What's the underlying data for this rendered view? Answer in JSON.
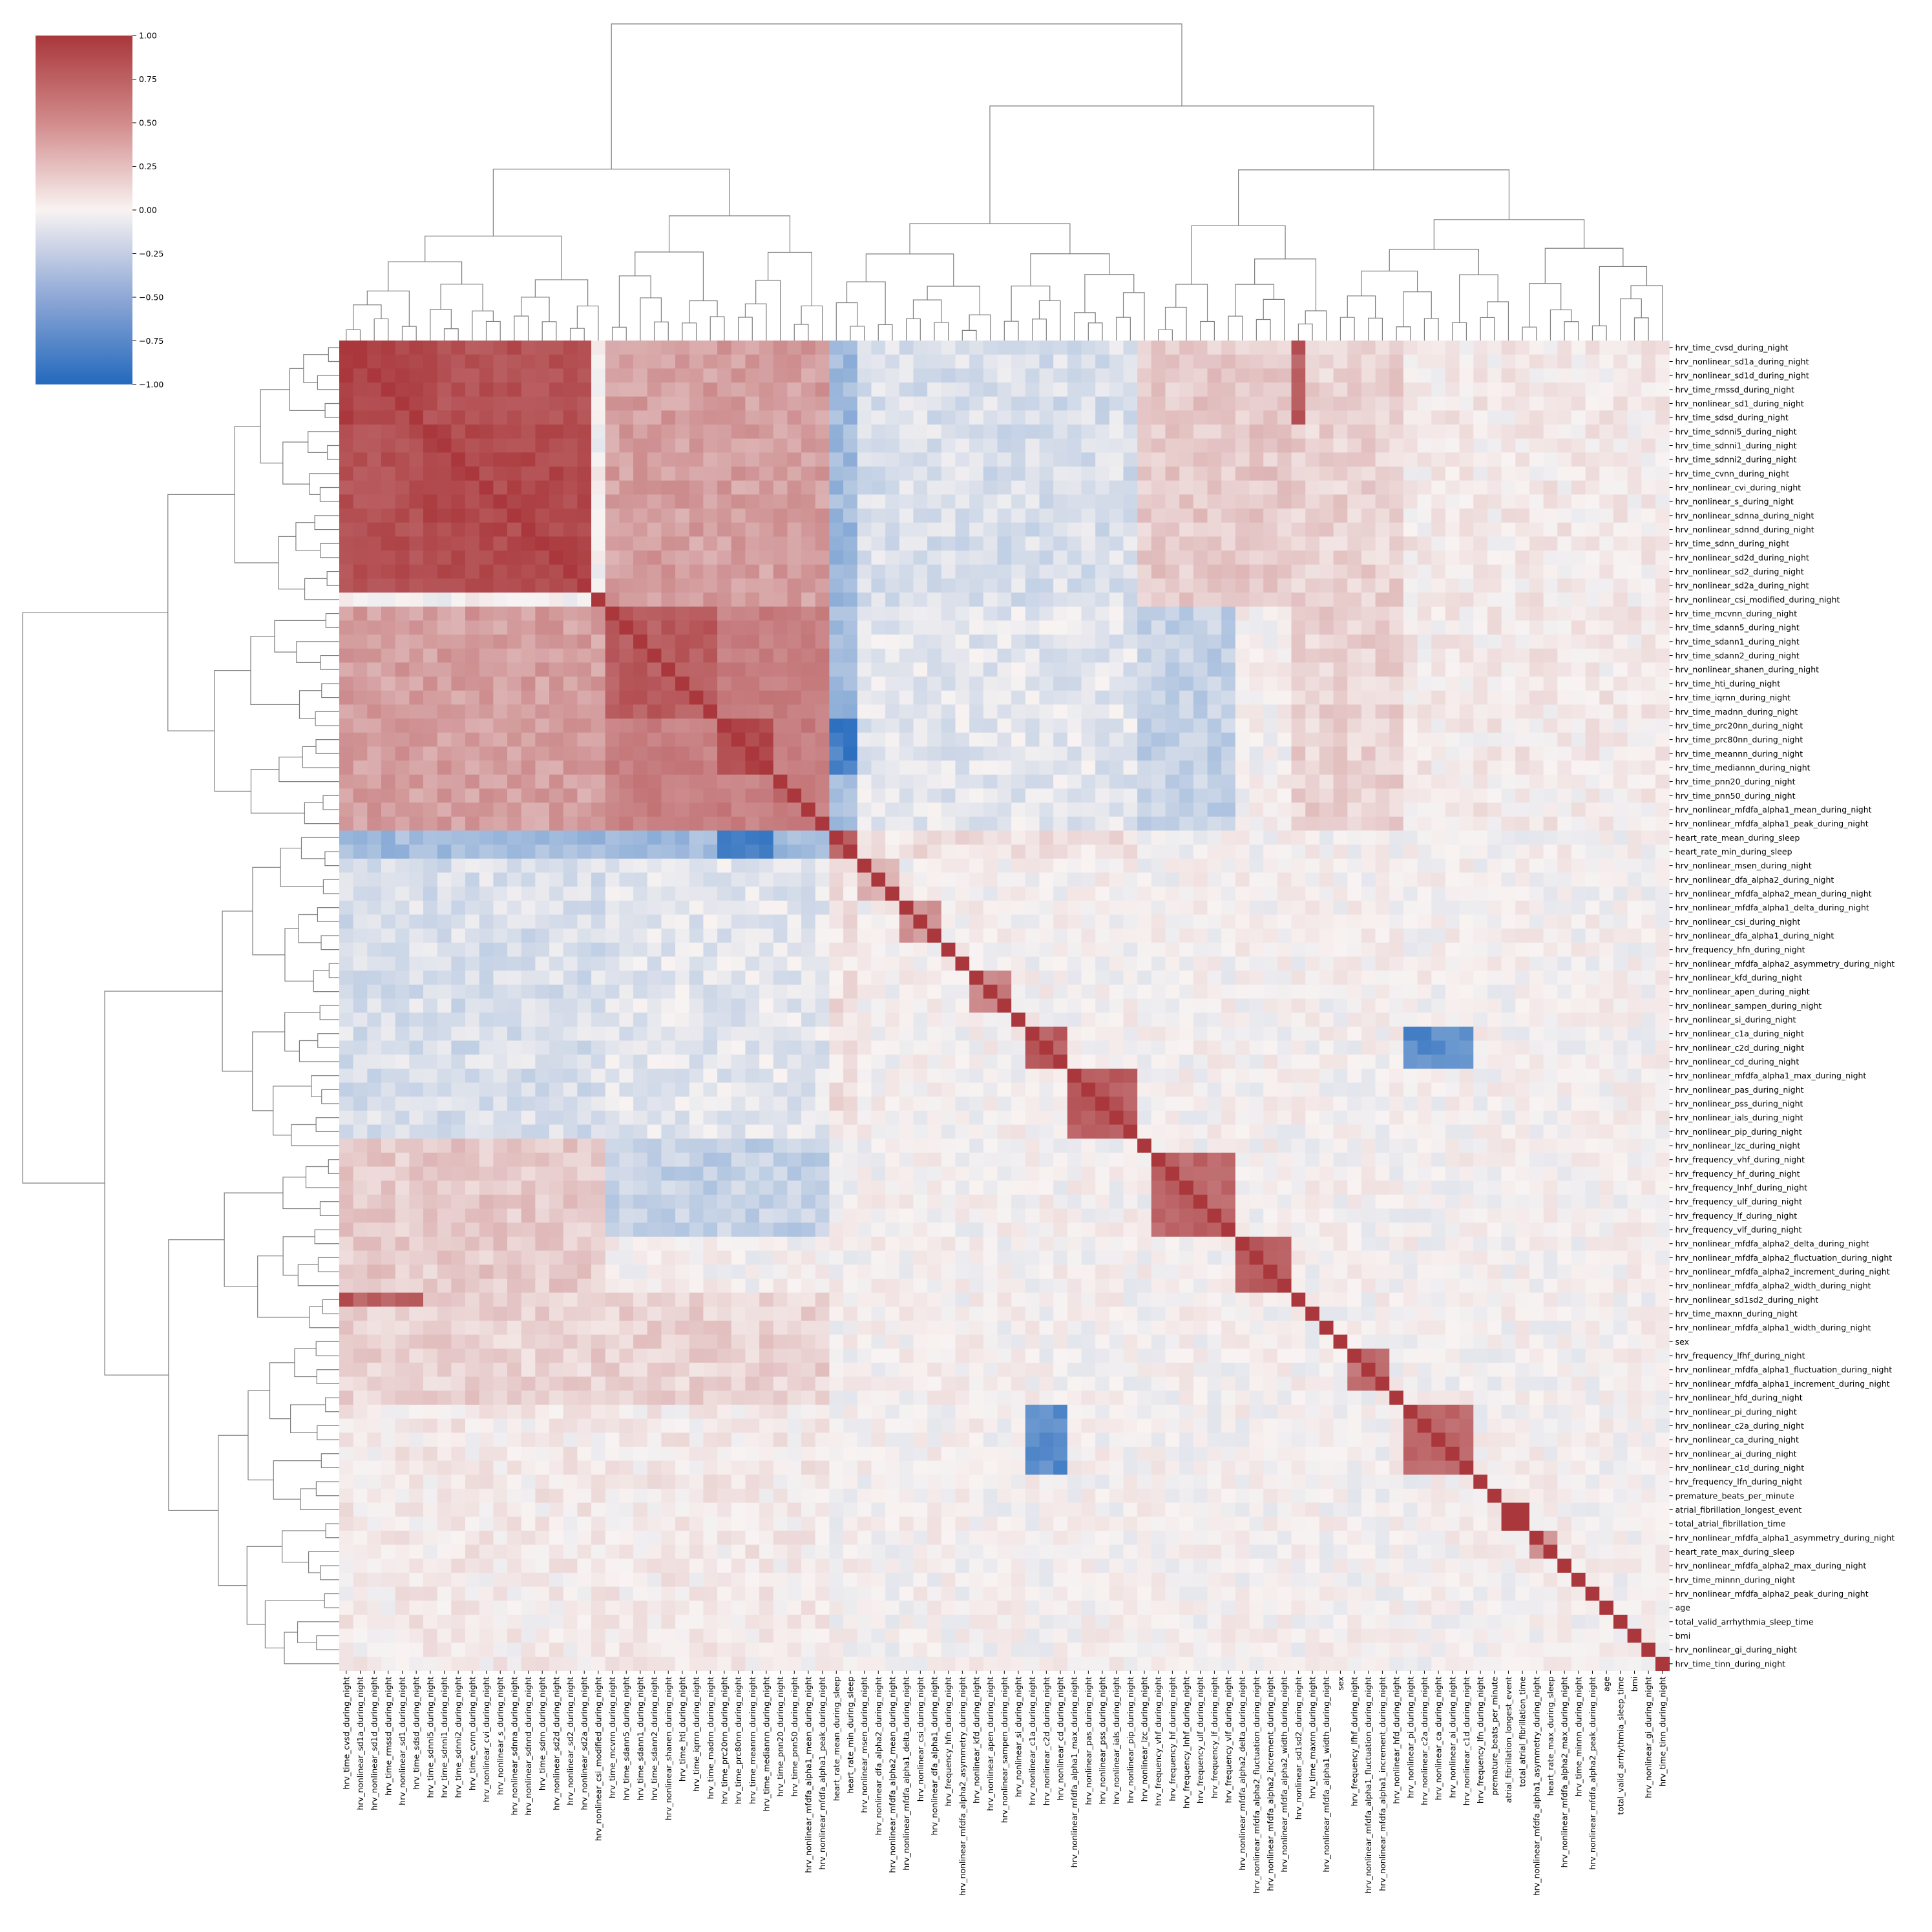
{
  "chart_data": {
    "type": "heatmap",
    "subtype": "clustermap",
    "title": "",
    "xlabel": "",
    "ylabel": "",
    "colormap": "vlag",
    "colors": {
      "low": "#2369bd",
      "mid": "#f8f3f2",
      "high": "#a9373b",
      "dendrogram": "#7f7f7f"
    },
    "vmin": -1.0,
    "vmax": 1.0,
    "colorbar_ticks": [
      "1.00",
      "0.75",
      "0.50",
      "0.25",
      "0.00",
      "−0.25",
      "−0.50",
      "−0.75",
      "−1.00"
    ],
    "colorbar_tick_values": [
      1.0,
      0.75,
      0.5,
      0.25,
      0.0,
      -0.25,
      -0.5,
      -0.75,
      -1.0
    ],
    "labels": [
      "hrv_time_cvsd_during_night",
      "hrv_nonlinear_sd1a_during_night",
      "hrv_nonlinear_sd1d_during_night",
      "hrv_time_rmssd_during_night",
      "hrv_nonlinear_sd1_during_night",
      "hrv_time_sdsd_during_night",
      "hrv_time_sdnni5_during_night",
      "hrv_time_sdnni1_during_night",
      "hrv_time_sdnni2_during_night",
      "hrv_time_cvnn_during_night",
      "hrv_nonlinear_cvi_during_night",
      "hrv_nonlinear_s_during_night",
      "hrv_nonlinear_sdnna_during_night",
      "hrv_nonlinear_sdnnd_during_night",
      "hrv_time_sdnn_during_night",
      "hrv_nonlinear_sd2d_during_night",
      "hrv_nonlinear_sd2_during_night",
      "hrv_nonlinear_sd2a_during_night",
      "hrv_nonlinear_csi_modified_during_night",
      "hrv_time_mcvnn_during_night",
      "hrv_time_sdann5_during_night",
      "hrv_time_sdann1_during_night",
      "hrv_time_sdann2_during_night",
      "hrv_nonlinear_shanen_during_night",
      "hrv_time_hti_during_night",
      "hrv_time_iqrnn_during_night",
      "hrv_time_madnn_during_night",
      "hrv_time_prc20nn_during_night",
      "hrv_time_prc80nn_during_night",
      "hrv_time_meannn_during_night",
      "hrv_time_mediannn_during_night",
      "hrv_time_pnn20_during_night",
      "hrv_time_pnn50_during_night",
      "hrv_nonlinear_mfdfa_alpha1_mean_during_night",
      "hrv_nonlinear_mfdfa_alpha1_peak_during_night",
      "heart_rate_mean_during_sleep",
      "heart_rate_min_during_sleep",
      "hrv_nonlinear_msen_during_night",
      "hrv_nonlinear_dfa_alpha2_during_night",
      "hrv_nonlinear_mfdfa_alpha2_mean_during_night",
      "hrv_nonlinear_mfdfa_alpha1_delta_during_night",
      "hrv_nonlinear_csi_during_night",
      "hrv_nonlinear_dfa_alpha1_during_night",
      "hrv_frequency_hfn_during_night",
      "hrv_nonlinear_mfdfa_alpha2_asymmetry_during_night",
      "hrv_nonlinear_kfd_during_night",
      "hrv_nonlinear_apen_during_night",
      "hrv_nonlinear_sampen_during_night",
      "hrv_nonlinear_si_during_night",
      "hrv_nonlinear_c1a_during_night",
      "hrv_nonlinear_c2d_during_night",
      "hrv_nonlinear_cd_during_night",
      "hrv_nonlinear_mfdfa_alpha1_max_during_night",
      "hrv_nonlinear_pas_during_night",
      "hrv_nonlinear_pss_during_night",
      "hrv_nonlinear_ials_during_night",
      "hrv_nonlinear_pip_during_night",
      "hrv_nonlinear_lzc_during_night",
      "hrv_frequency_vhf_during_night",
      "hrv_frequency_hf_during_night",
      "hrv_frequency_lnhf_during_night",
      "hrv_frequency_ulf_during_night",
      "hrv_frequency_lf_during_night",
      "hrv_frequency_vlf_during_night",
      "hrv_nonlinear_mfdfa_alpha2_delta_during_night",
      "hrv_nonlinear_mfdfa_alpha2_fluctuation_during_night",
      "hrv_nonlinear_mfdfa_alpha2_increment_during_night",
      "hrv_nonlinear_mfdfa_alpha2_width_during_night",
      "hrv_nonlinear_sd1sd2_during_night",
      "hrv_time_maxnn_during_night",
      "hrv_nonlinear_mfdfa_alpha1_width_during_night",
      "sex",
      "hrv_frequency_lfhf_during_night",
      "hrv_nonlinear_mfdfa_alpha1_fluctuation_during_night",
      "hrv_nonlinear_mfdfa_alpha1_increment_during_night",
      "hrv_nonlinear_hfd_during_night",
      "hrv_nonlinear_pi_during_night",
      "hrv_nonlinear_c2a_during_night",
      "hrv_nonlinear_ca_during_night",
      "hrv_nonlinear_ai_during_night",
      "hrv_nonlinear_c1d_during_night",
      "hrv_frequency_lfn_during_night",
      "premature_beats_per_minute",
      "atrial_fibrillation_longest_event",
      "total_atrial_fibrillation_time",
      "hrv_nonlinear_mfdfa_alpha1_asymmetry_during_night",
      "heart_rate_max_during_sleep",
      "hrv_nonlinear_mfdfa_alpha2_max_during_night",
      "hrv_time_minnn_during_night",
      "hrv_nonlinear_mfdfa_alpha2_peak_during_night",
      "age",
      "total_valid_arrhythmia_sleep_time",
      "bmi",
      "hrv_nonlinear_gi_during_night",
      "hrv_time_tinn_during_night"
    ],
    "clusters": [
      {
        "start": 0,
        "end": 18,
        "value": 0.86
      },
      {
        "start": 0,
        "end": 6,
        "value": 0.93
      },
      {
        "start": 6,
        "end": 18,
        "value": 0.9
      },
      {
        "start": 19,
        "end": 35,
        "value": 0.62
      },
      {
        "start": 19,
        "end": 27,
        "value": 0.8
      },
      {
        "start": 27,
        "end": 31,
        "value": 0.9
      },
      {
        "start": 31,
        "end": 33,
        "value": 0.7
      },
      {
        "start": 35,
        "end": 37,
        "value": 0.8
      },
      {
        "start": 37,
        "end": 40,
        "value": 0.35
      },
      {
        "start": 40,
        "end": 43,
        "value": 0.5
      },
      {
        "start": 45,
        "end": 48,
        "value": 0.6
      },
      {
        "start": 49,
        "end": 52,
        "value": 0.8
      },
      {
        "start": 52,
        "end": 57,
        "value": 0.8
      },
      {
        "start": 58,
        "end": 64,
        "value": 0.75
      },
      {
        "start": 64,
        "end": 68,
        "value": 0.8
      },
      {
        "start": 72,
        "end": 75,
        "value": 0.7
      },
      {
        "start": 76,
        "end": 81,
        "value": 0.75
      },
      {
        "start": 83,
        "end": 85,
        "value": 0.95
      },
      {
        "start": 85,
        "end": 87,
        "value": 0.5
      }
    ],
    "cross_blocks": [
      {
        "rows": [
          0,
          19
        ],
        "cols": [
          19,
          35
        ],
        "value": 0.45
      },
      {
        "rows": [
          0,
          35
        ],
        "cols": [
          35,
          37
        ],
        "value": -0.42
      },
      {
        "rows": [
          0,
          19
        ],
        "cols": [
          37,
          57
        ],
        "value": -0.15
      },
      {
        "rows": [
          19,
          35
        ],
        "cols": [
          37,
          57
        ],
        "value": -0.1
      },
      {
        "rows": [
          0,
          19
        ],
        "cols": [
          57,
          69
        ],
        "value": 0.22
      },
      {
        "rows": [
          19,
          35
        ],
        "cols": [
          57,
          64
        ],
        "value": -0.25
      },
      {
        "rows": [
          0,
          35
        ],
        "cols": [
          68,
          76
        ],
        "value": 0.18
      },
      {
        "rows": [
          0,
          35
        ],
        "cols": [
          76,
          95
        ],
        "value": 0.04
      },
      {
        "rows": [
          27,
          31
        ],
        "cols": [
          35,
          37
        ],
        "value": -0.85
      },
      {
        "rows": [
          49,
          52
        ],
        "cols": [
          76,
          81
        ],
        "value": -0.75
      },
      {
        "rows": [
          0,
          6
        ],
        "cols": [
          68,
          69
        ],
        "value": 0.8
      },
      {
        "rows": [
          35,
          37
        ],
        "cols": [
          37,
          57
        ],
        "value": 0.1
      }
    ]
  }
}
